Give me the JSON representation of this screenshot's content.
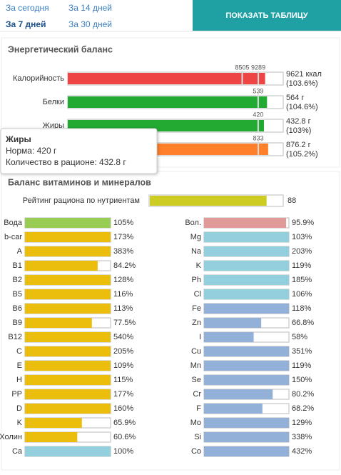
{
  "tabs": [
    "За сегодня",
    "За 14 дней",
    "За 7 дней",
    "За 30 дней"
  ],
  "active_tab": 2,
  "button": "ПОКАЗАТЬ ТАБЛИЦУ",
  "energy": {
    "title": "Энергетический баланс",
    "rows": [
      {
        "name": "Калорийность",
        "norms": [
          8505,
          9289
        ],
        "value": 9621,
        "value_label": "9621 ккал",
        "percent": 103.6,
        "percent_label": "(103.6%)",
        "color": "#ee4444"
      },
      {
        "name": "Белки",
        "norms": [
          539
        ],
        "value": 564,
        "value_label": "564 г",
        "percent": 104.6,
        "percent_label": "(104.6%)",
        "color": "#22aa33"
      },
      {
        "name": "Жиры",
        "norms": [
          420
        ],
        "value": 432.8,
        "value_label": "432.8 г",
        "percent": 103,
        "percent_label": "(103%)",
        "color": "#22aa33"
      },
      {
        "name": null,
        "norms": [
          833
        ],
        "value": 876.2,
        "value_label": "876.2 г",
        "percent": 105.2,
        "percent_label": "(105.2%)",
        "color": "#ff7f2a"
      }
    ]
  },
  "tooltip": {
    "title": "Жиры",
    "lines": [
      "Норма: 420 г",
      "Количество в рационе: 432.8 г"
    ]
  },
  "vitamins": {
    "title": "Баланс витаминов и минералов",
    "rating": {
      "name": "Рейтинг рациона по нутриентам",
      "value": 88,
      "max": 100,
      "color": "#cccc22"
    },
    "left": [
      {
        "name": "Вода",
        "value": 105,
        "value_label": "105%",
        "color": "#99cc55"
      },
      {
        "name": "b-car",
        "value": 173,
        "value_label": "173%",
        "color": "#ebbd0d"
      },
      {
        "name": "A",
        "value": 383,
        "value_label": "383%",
        "color": "#ebbd0d"
      },
      {
        "name": "B1",
        "value": 84.2,
        "value_label": "84.2%",
        "color": "#ebbd0d"
      },
      {
        "name": "B2",
        "value": 128,
        "value_label": "128%",
        "color": "#ebbd0d"
      },
      {
        "name": "B5",
        "value": 116,
        "value_label": "116%",
        "color": "#ebbd0d"
      },
      {
        "name": "B6",
        "value": 113,
        "value_label": "113%",
        "color": "#ebbd0d"
      },
      {
        "name": "B9",
        "value": 77.5,
        "value_label": "77.5%",
        "color": "#ebbd0d"
      },
      {
        "name": "B12",
        "value": 540,
        "value_label": "540%",
        "color": "#ebbd0d"
      },
      {
        "name": "C",
        "value": 205,
        "value_label": "205%",
        "color": "#ebbd0d"
      },
      {
        "name": "E",
        "value": 109,
        "value_label": "109%",
        "color": "#ebbd0d"
      },
      {
        "name": "H",
        "value": 115,
        "value_label": "115%",
        "color": "#ebbd0d"
      },
      {
        "name": "PP",
        "value": 177,
        "value_label": "177%",
        "color": "#ebbd0d"
      },
      {
        "name": "D",
        "value": 160,
        "value_label": "160%",
        "color": "#ebbd0d"
      },
      {
        "name": "K",
        "value": 65.9,
        "value_label": "65.9%",
        "color": "#ebbd0d"
      },
      {
        "name": "Холин",
        "value": 60.6,
        "value_label": "60.6%",
        "color": "#ebbd0d"
      },
      {
        "name": "Ca",
        "value": 100,
        "value_label": "100%",
        "color": "#93cfdc"
      }
    ],
    "right": [
      {
        "name": "Вол.",
        "value": 95.9,
        "value_label": "95.9%",
        "color": "#e09a9a"
      },
      {
        "name": "Mg",
        "value": 103,
        "value_label": "103%",
        "color": "#93cfdc"
      },
      {
        "name": "Na",
        "value": 203,
        "value_label": "203%",
        "color": "#93cfdc"
      },
      {
        "name": "K",
        "value": 119,
        "value_label": "119%",
        "color": "#93cfdc"
      },
      {
        "name": "Ph",
        "value": 185,
        "value_label": "185%",
        "color": "#93cfdc"
      },
      {
        "name": "Cl",
        "value": 106,
        "value_label": "106%",
        "color": "#93cfdc"
      },
      {
        "name": "Fe",
        "value": 118,
        "value_label": "118%",
        "color": "#93b0d8"
      },
      {
        "name": "Zn",
        "value": 66.8,
        "value_label": "66.8%",
        "color": "#93b0d8"
      },
      {
        "name": "I",
        "value": 58,
        "value_label": "58%",
        "color": "#93b0d8"
      },
      {
        "name": "Cu",
        "value": 351,
        "value_label": "351%",
        "color": "#93b0d8"
      },
      {
        "name": "Mn",
        "value": 119,
        "value_label": "119%",
        "color": "#93b0d8"
      },
      {
        "name": "Se",
        "value": 150,
        "value_label": "150%",
        "color": "#93b0d8"
      },
      {
        "name": "Cr",
        "value": 80.2,
        "value_label": "80.2%",
        "color": "#93b0d8"
      },
      {
        "name": "F",
        "value": 68.2,
        "value_label": "68.2%",
        "color": "#93b0d8"
      },
      {
        "name": "Mo",
        "value": 129,
        "value_label": "129%",
        "color": "#93b0d8"
      },
      {
        "name": "Si",
        "value": 338,
        "value_label": "338%",
        "color": "#93b0d8"
      },
      {
        "name": "Co",
        "value": 432,
        "value_label": "432%",
        "color": "#93b0d8"
      }
    ]
  }
}
